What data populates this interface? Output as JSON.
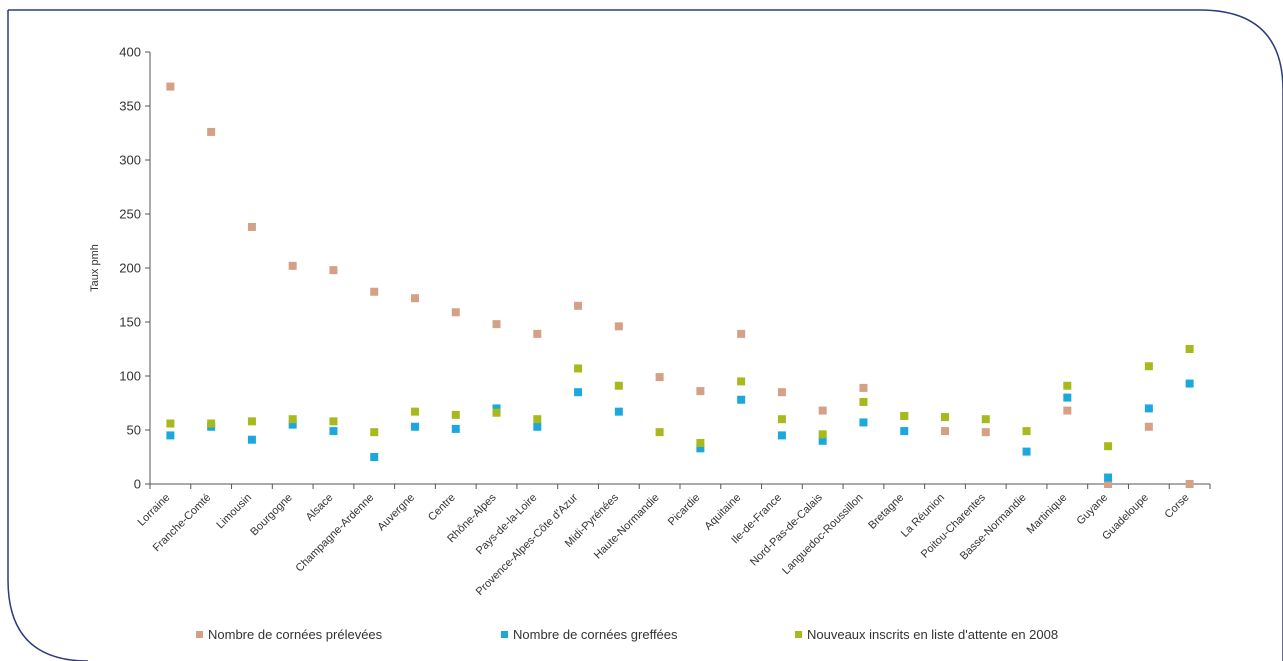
{
  "chart_data": {
    "type": "scatter",
    "ylabel": "Taux pmh",
    "ylim": [
      0,
      400
    ],
    "yticks": [
      0,
      50,
      100,
      150,
      200,
      250,
      300,
      350,
      400
    ],
    "grid": false,
    "legend_position": "bottom",
    "categories": [
      "Lorraine",
      "Franche-Comté",
      "Limousin",
      "Bourgogne",
      "Alsace",
      "Champagne-Ardenne",
      "Auvergne",
      "Centre",
      "Rhône-Alpes",
      "Pays-de-la-Loire",
      "Provence-Alpes-Côte d'Azur",
      "Midi-Pyrénées",
      "Haute-Normandie",
      "Picardie",
      "Aquitaine",
      "Ile-de-France",
      "Nord-Pas-de-Calais",
      "Languedoc-Roussillon",
      "Bretagne",
      "La Réunion",
      "Poitou-Charentes",
      "Basse-Normandie",
      "Martinique",
      "Guyane",
      "Guadeloupe",
      "Corse"
    ],
    "series": [
      {
        "name": "Nombre de cornées prélevées",
        "color": "#d4a086",
        "values": [
          368,
          326,
          238,
          202,
          198,
          178,
          172,
          159,
          148,
          139,
          165,
          146,
          99,
          86,
          139,
          85,
          68,
          89,
          63,
          49,
          48,
          null,
          68,
          0,
          53,
          0
        ]
      },
      {
        "name": "Nombre de cornées greffées",
        "color": "#1ba9dd",
        "values": [
          45,
          53,
          41,
          55,
          49,
          25,
          53,
          51,
          70,
          53,
          85,
          67,
          null,
          33,
          78,
          45,
          40,
          57,
          49,
          null,
          null,
          30,
          80,
          6,
          70,
          93
        ]
      },
      {
        "name": "Nouveaux inscrits en liste d'attente en 2008",
        "color": "#a8b91e",
        "values": [
          56,
          56,
          58,
          60,
          58,
          48,
          67,
          64,
          66,
          60,
          107,
          91,
          48,
          38,
          95,
          60,
          46,
          76,
          63,
          62,
          60,
          49,
          91,
          35,
          109,
          125
        ]
      }
    ]
  }
}
